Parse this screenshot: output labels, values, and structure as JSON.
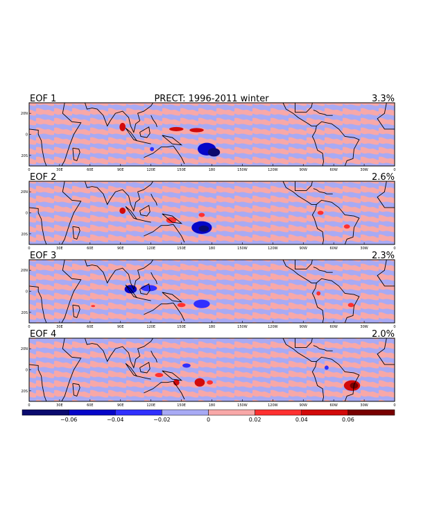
{
  "chart_data": {
    "type": "heatmap",
    "title": "PRECT: 1996-2011 winter",
    "panels": [
      {
        "label": "EOF 1",
        "variance": "3.3%",
        "anomalies": [
          {
            "lon": 92,
            "lat": 7,
            "rx": 3,
            "ry": 4,
            "value": 0.05
          },
          {
            "lon": 145,
            "lat": 5,
            "rx": 7,
            "ry": 2,
            "value": 0.04
          },
          {
            "lon": 165,
            "lat": 4,
            "rx": 7,
            "ry": 2,
            "value": 0.04
          },
          {
            "lon": 175,
            "lat": -14,
            "rx": 9,
            "ry": 6,
            "value": -0.05
          },
          {
            "lon": 182,
            "lat": -17,
            "rx": 6,
            "ry": 4,
            "value": -0.07
          },
          {
            "lon": 121,
            "lat": -14,
            "rx": 2,
            "ry": 2,
            "value": -0.03
          }
        ]
      },
      {
        "label": "EOF 2",
        "variance": "2.6%",
        "anomalies": [
          {
            "lon": 92,
            "lat": 2,
            "rx": 3,
            "ry": 3,
            "value": 0.05
          },
          {
            "lon": 140,
            "lat": -7,
            "rx": 5,
            "ry": 3,
            "value": 0.03
          },
          {
            "lon": 170,
            "lat": -14,
            "rx": 10,
            "ry": 6,
            "value": -0.05
          },
          {
            "lon": 172,
            "lat": -15,
            "rx": 5,
            "ry": 3,
            "value": -0.07
          },
          {
            "lon": 170,
            "lat": -2,
            "rx": 3,
            "ry": 2,
            "value": 0.03
          },
          {
            "lon": 287,
            "lat": 0,
            "rx": 3,
            "ry": 2,
            "value": 0.03
          },
          {
            "lon": 313,
            "lat": -13,
            "rx": 3,
            "ry": 2,
            "value": 0.03
          }
        ]
      },
      {
        "label": "EOF 3",
        "variance": "2.3%",
        "anomalies": [
          {
            "lon": 100,
            "lat": 2,
            "rx": 6,
            "ry": 4,
            "value": -0.05
          },
          {
            "lon": 118,
            "lat": 3,
            "rx": 8,
            "ry": 3,
            "value": -0.04
          },
          {
            "lon": 150,
            "lat": -13,
            "rx": 4,
            "ry": 2,
            "value": 0.03
          },
          {
            "lon": 170,
            "lat": -12,
            "rx": 8,
            "ry": 4,
            "value": -0.04
          },
          {
            "lon": 285,
            "lat": -2,
            "rx": 2,
            "ry": 2,
            "value": 0.03
          },
          {
            "lon": 317,
            "lat": -13,
            "rx": 3,
            "ry": 2,
            "value": 0.03
          },
          {
            "lon": 63,
            "lat": -14,
            "rx": 2,
            "ry": 1,
            "value": 0.03
          }
        ]
      },
      {
        "label": "EOF 4",
        "variance": "2.0%",
        "anomalies": [
          {
            "lon": 128,
            "lat": -5,
            "rx": 4,
            "ry": 2,
            "value": 0.03
          },
          {
            "lon": 145,
            "lat": -12,
            "rx": 3,
            "ry": 3,
            "value": 0.04
          },
          {
            "lon": 168,
            "lat": -12,
            "rx": 5,
            "ry": 4,
            "value": 0.05
          },
          {
            "lon": 178,
            "lat": -12,
            "rx": 3,
            "ry": 2,
            "value": 0.03
          },
          {
            "lon": 155,
            "lat": 4,
            "rx": 4,
            "ry": 2,
            "value": -0.03
          },
          {
            "lon": 293,
            "lat": 2,
            "rx": 2,
            "ry": 2,
            "value": -0.03
          },
          {
            "lon": 318,
            "lat": -15,
            "rx": 8,
            "ry": 5,
            "value": 0.05
          },
          {
            "lon": 320,
            "lat": -15,
            "rx": 4,
            "ry": 3,
            "value": 0.07
          }
        ]
      }
    ],
    "lon_ticks": [
      "0",
      "30E",
      "60E",
      "90E",
      "120E",
      "150E",
      "180",
      "150W",
      "120W",
      "90W",
      "60W",
      "30W",
      "0"
    ],
    "lat_ticks": [
      "20N",
      "0",
      "20S"
    ],
    "xlim": [
      0,
      360
    ],
    "ylim": [
      -30,
      30
    ],
    "colorbar": {
      "levels": [
        -0.06,
        -0.04,
        -0.02,
        0,
        0.02,
        0.04,
        0.06
      ],
      "tick_labels": [
        "−0.06",
        "−0.04",
        "−0.02",
        "0",
        "0.02",
        "0.04",
        "0.06"
      ],
      "colors": [
        "#0a0a6e",
        "#0505c8",
        "#3030ff",
        "#a8aaf4",
        "#f8a8a8",
        "#ff3030",
        "#d20a0a",
        "#780000"
      ]
    },
    "legend_position": "bottom",
    "grid": false
  }
}
